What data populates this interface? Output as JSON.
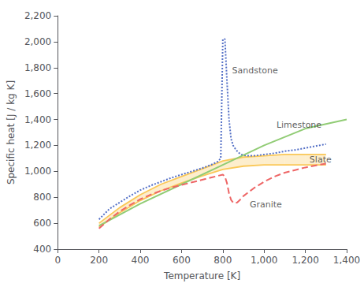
{
  "chart_data": {
    "type": "line",
    "xlabel": "Temperature [K]",
    "ylabel": "Specific heat [J / kg K]",
    "xlim": [
      0,
      1400
    ],
    "ylim": [
      400,
      2200
    ],
    "xticks": [
      0,
      200,
      400,
      600,
      800,
      1000,
      1200,
      1400
    ],
    "yticks": [
      400,
      600,
      800,
      1000,
      1200,
      1400,
      1600,
      1800,
      2000,
      2200
    ],
    "grid": false,
    "series": [
      {
        "name": "Sandstone",
        "type": "line",
        "line_style": "dotted",
        "x": [
          200,
          250,
          300,
          350,
          400,
          450,
          500,
          550,
          600,
          650,
          700,
          750,
          775,
          790,
          800,
          810,
          820,
          830,
          840,
          850,
          860,
          870,
          880,
          890,
          900,
          920,
          950,
          1000,
          1050,
          1100,
          1150,
          1200,
          1300
        ],
        "values": [
          630,
          710,
          760,
          810,
          855,
          890,
          920,
          950,
          975,
          1000,
          1025,
          1055,
          1075,
          1100,
          2020,
          2020,
          1700,
          1400,
          1250,
          1200,
          1175,
          1155,
          1140,
          1130,
          1125,
          1120,
          1120,
          1130,
          1140,
          1155,
          1165,
          1180,
          1210
        ]
      },
      {
        "name": "Limestone",
        "type": "line",
        "line_style": "solid",
        "x": [
          200,
          400,
          600,
          800,
          1000,
          1200,
          1400
        ],
        "values": [
          580,
          750,
          900,
          1050,
          1200,
          1330,
          1400
        ]
      },
      {
        "name": "Slate",
        "type": "band",
        "line_style": "solid",
        "x": [
          200,
          300,
          400,
          500,
          600,
          700,
          800,
          900,
          1000,
          1100,
          1200,
          1300
        ],
        "lower": [
          570,
          680,
          775,
          850,
          910,
          965,
          1015,
          1040,
          1050,
          1050,
          1050,
          1050
        ],
        "upper": [
          600,
          720,
          820,
          900,
          960,
          1020,
          1080,
          1110,
          1120,
          1130,
          1130,
          1130
        ]
      },
      {
        "name": "Granite",
        "type": "line",
        "line_style": "dashed",
        "x": [
          200,
          250,
          300,
          350,
          400,
          450,
          500,
          550,
          600,
          650,
          700,
          750,
          800,
          810,
          820,
          830,
          840,
          850,
          860,
          870,
          880,
          900,
          950,
          1000,
          1050,
          1100,
          1150,
          1200,
          1300
        ],
        "values": [
          560,
          630,
          690,
          740,
          785,
          820,
          850,
          875,
          895,
          915,
          935,
          955,
          975,
          960,
          910,
          830,
          780,
          760,
          755,
          760,
          775,
          810,
          870,
          920,
          960,
          990,
          1010,
          1030,
          1060
        ]
      }
    ],
    "annotations": [
      {
        "text": "Sandstone",
        "x": 845,
        "y": 1780
      },
      {
        "text": "Limestone",
        "x": 1060,
        "y": 1360
      },
      {
        "text": "Slate",
        "x": 1220,
        "y": 1090
      },
      {
        "text": "Granite",
        "x": 930,
        "y": 745
      }
    ]
  }
}
